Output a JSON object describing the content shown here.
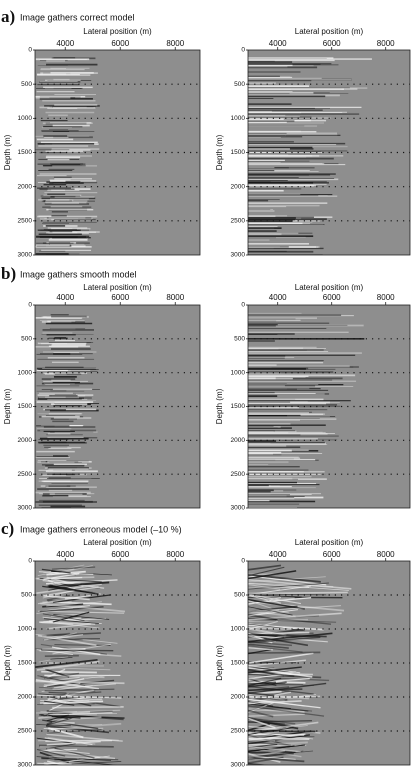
{
  "panels": [
    {
      "label": "a)",
      "title": "Image gathers correct model",
      "plots": [
        {
          "xlabel": "Lateral position (m)",
          "ylabel": "Depth (m)",
          "xlim": [
            2900,
            8900
          ],
          "ylim": [
            0,
            3000
          ],
          "xticks": [
            4000,
            6000,
            8000
          ],
          "yticks": [
            0,
            500,
            1000,
            1500,
            2000,
            2500,
            3000
          ]
        },
        {
          "xlabel": "Lateral position (m)",
          "ylabel": "Depth (m)",
          "xlim": [
            2900,
            8900
          ],
          "ylim": [
            0,
            3000
          ],
          "xticks": [
            4000,
            6000,
            8000
          ],
          "yticks": [
            0,
            500,
            1000,
            1500,
            2000,
            2500,
            3000
          ]
        }
      ]
    },
    {
      "label": "b)",
      "title": "Image gathers smooth model",
      "plots": [
        {
          "xlabel": "Lateral position (m)",
          "ylabel": "Depth (m)",
          "xlim": [
            2900,
            8900
          ],
          "ylim": [
            0,
            3000
          ],
          "xticks": [
            4000,
            6000,
            8000
          ],
          "yticks": [
            0,
            500,
            1000,
            1500,
            2000,
            2500,
            3000
          ]
        },
        {
          "xlabel": "Lateral position (m)",
          "ylabel": "Depth (m)",
          "xlim": [
            2900,
            8900
          ],
          "ylim": [
            0,
            3000
          ],
          "xticks": [
            4000,
            6000,
            8000
          ],
          "yticks": [
            0,
            500,
            1000,
            1500,
            2000,
            2500,
            3000
          ]
        }
      ]
    },
    {
      "label": "c)",
      "title": "Image gathers erroneous model (–10 %)",
      "plots": [
        {
          "xlabel": "Lateral position (m)",
          "ylabel": "Depth (m)",
          "xlim": [
            2900,
            8900
          ],
          "ylim": [
            0,
            3000
          ],
          "xticks": [
            4000,
            6000,
            8000
          ],
          "yticks": [
            0,
            500,
            1000,
            1500,
            2000,
            2500,
            3000
          ]
        },
        {
          "xlabel": "Lateral position (m)",
          "ylabel": "Depth (m)",
          "xlim": [
            2900,
            8900
          ],
          "ylim": [
            0,
            3000
          ],
          "xticks": [
            4000,
            6000,
            8000
          ],
          "yticks": [
            0,
            500,
            1000,
            1500,
            2000,
            2500,
            3000
          ]
        }
      ]
    }
  ]
}
